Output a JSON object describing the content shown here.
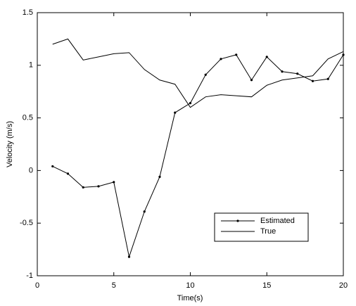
{
  "chart_data": {
    "type": "line",
    "xlabel": "Time(s)",
    "ylabel": "Velocity (m/s)",
    "x": [
      1,
      2,
      3,
      4,
      5,
      6,
      7,
      8,
      9,
      10,
      11,
      12,
      13,
      14,
      15,
      16,
      17,
      18,
      19,
      20
    ],
    "series": [
      {
        "name": "Estimated",
        "color": "#000000",
        "markers": true,
        "values": [
          0.04,
          -0.03,
          -0.16,
          -0.15,
          -0.11,
          -0.82,
          -0.39,
          -0.06,
          0.55,
          0.64,
          0.91,
          1.06,
          1.1,
          0.86,
          1.08,
          0.94,
          0.92,
          0.85,
          0.87,
          1.1
        ]
      },
      {
        "name": "True",
        "color": "#000000",
        "markers": false,
        "values": [
          1.2,
          1.25,
          1.05,
          1.08,
          1.11,
          1.12,
          0.96,
          0.86,
          0.82,
          0.6,
          0.7,
          0.72,
          0.71,
          0.7,
          0.81,
          0.86,
          0.88,
          0.9,
          1.06,
          1.13
        ]
      }
    ],
    "xlim": [
      0,
      20
    ],
    "xticks": [
      0,
      5,
      10,
      15,
      20
    ],
    "ylim": [
      -1,
      1.5
    ],
    "yticks": [
      -1,
      -0.5,
      0,
      0.5,
      1,
      1.5
    ],
    "grid": false
  }
}
